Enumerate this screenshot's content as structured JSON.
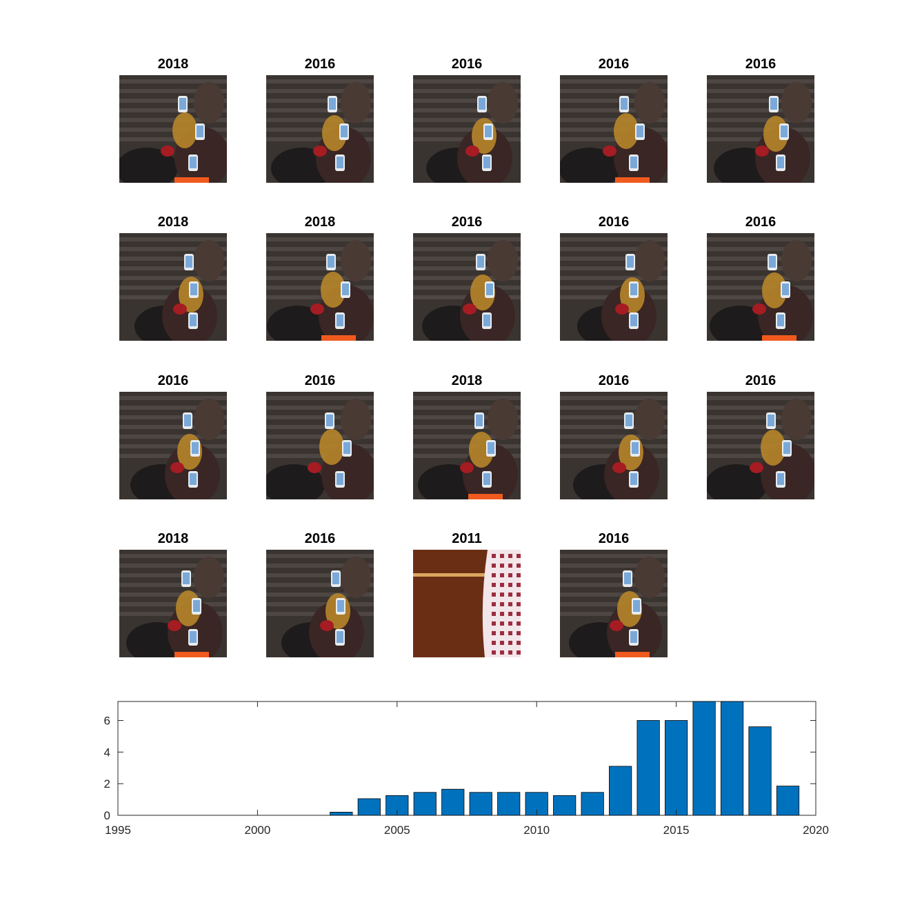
{
  "thumbnails": [
    {
      "year": "2018",
      "scene": "phones"
    },
    {
      "year": "2016",
      "scene": "phones"
    },
    {
      "year": "2016",
      "scene": "phones"
    },
    {
      "year": "2016",
      "scene": "phones"
    },
    {
      "year": "2016",
      "scene": "phones"
    },
    {
      "year": "2018",
      "scene": "phones"
    },
    {
      "year": "2018",
      "scene": "phones"
    },
    {
      "year": "2016",
      "scene": "phones"
    },
    {
      "year": "2016",
      "scene": "phones"
    },
    {
      "year": "2016",
      "scene": "phones"
    },
    {
      "year": "2016",
      "scene": "phones"
    },
    {
      "year": "2016",
      "scene": "phones"
    },
    {
      "year": "2018",
      "scene": "phones"
    },
    {
      "year": "2016",
      "scene": "phones"
    },
    {
      "year": "2016",
      "scene": "phones"
    },
    {
      "year": "2018",
      "scene": "phones"
    },
    {
      "year": "2016",
      "scene": "phones"
    },
    {
      "year": "2011",
      "scene": "fabric"
    },
    {
      "year": "2016",
      "scene": "phones"
    }
  ],
  "chart_data": {
    "type": "bar",
    "x": [
      2003,
      2004,
      2005,
      2006,
      2007,
      2008,
      2009,
      2010,
      2011,
      2012,
      2013,
      2014,
      2015,
      2016,
      2017,
      2018,
      2019
    ],
    "values": [
      0.2,
      1.05,
      1.25,
      1.45,
      1.65,
      1.45,
      1.45,
      1.45,
      1.25,
      1.45,
      3.1,
      6.0,
      6.0,
      7.2,
      7.2,
      5.6,
      1.85
    ],
    "xlim": [
      1995,
      2020
    ],
    "ylim": [
      0,
      7.2
    ],
    "xticks": [
      1995,
      2000,
      2005,
      2010,
      2015,
      2020
    ],
    "yticks": [
      0,
      2,
      4,
      6
    ],
    "bar_color": "#0072BD",
    "title": "",
    "xlabel": "",
    "ylabel": ""
  }
}
